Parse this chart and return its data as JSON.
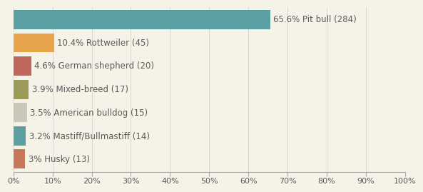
{
  "categories": [
    "Pit bull",
    "Rottweiler",
    "German shepherd",
    "Mixed-breed",
    "American bulldog",
    "Mastiff/Bullmastiff",
    "Husky"
  ],
  "values": [
    65.6,
    10.4,
    4.6,
    3.9,
    3.5,
    3.2,
    3.0
  ],
  "bar_colors": [
    "#5b9fa3",
    "#e8a44a",
    "#c0675a",
    "#9c9a58",
    "#c8c8b8",
    "#5b9fa3",
    "#c8785a"
  ],
  "labels": [
    "65.6% Pit bull (284)",
    "10.4% Rottweiler (45)",
    "4.6% German shepherd (20)",
    "3.9% Mixed-breed (17)",
    "3.5% American bulldog (15)",
    "3.2% Mastiff/Bullmastiff (14)",
    "3% Husky (13)"
  ],
  "background_color": "#f5f2e8",
  "xlim": [
    0,
    100
  ],
  "xticks": [
    0,
    10,
    20,
    30,
    40,
    50,
    60,
    70,
    80,
    90,
    100
  ],
  "xticklabels": [
    "0%",
    "10%",
    "20%",
    "30%",
    "40%",
    "50%",
    "60%",
    "70%",
    "80%",
    "90%",
    "100%"
  ],
  "label_fontsize": 8.5,
  "tick_fontsize": 8,
  "bar_height": 0.82
}
